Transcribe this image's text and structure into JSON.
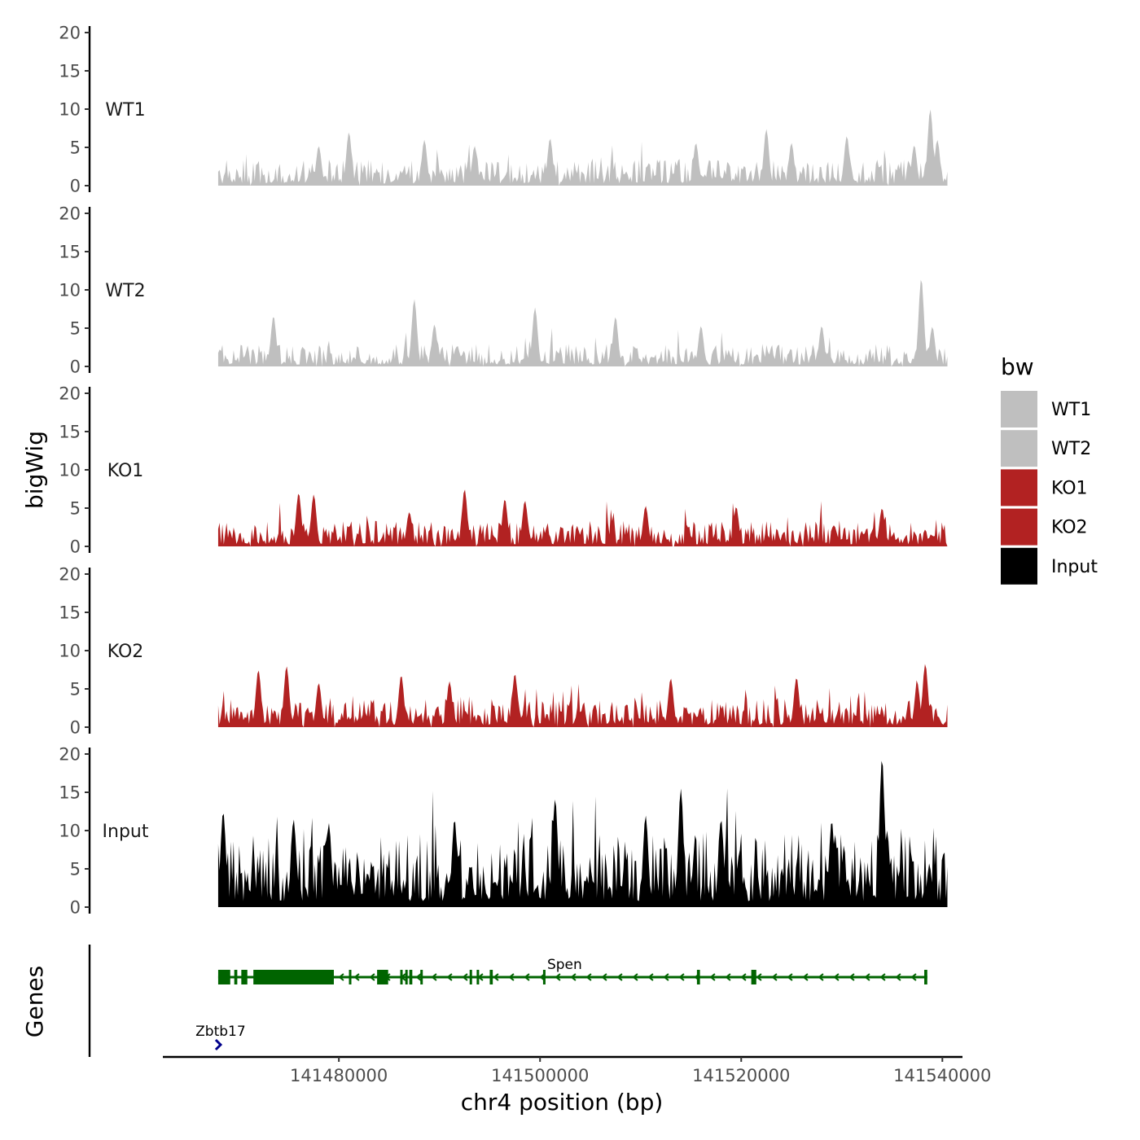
{
  "chart_data": {
    "type": "area",
    "title": "",
    "ylabel": "bigWig",
    "xlabel": "chr4 position (bp)",
    "xlim": [
      141462500,
      141542000
    ],
    "data_xrange": [
      141468000,
      141540500
    ],
    "ylim": [
      0,
      20
    ],
    "yticks": [
      0,
      5,
      10,
      15,
      20
    ],
    "xticks": [
      141480000,
      141500000,
      141520000,
      141540000
    ],
    "grid": false,
    "legend": {
      "title": "bw",
      "position": "right",
      "entries": [
        {
          "label": "WT1",
          "color": "#bfbfbf"
        },
        {
          "label": "WT2",
          "color": "#bfbfbf"
        },
        {
          "label": "KO1",
          "color": "#b22222"
        },
        {
          "label": "KO2",
          "color": "#b22222"
        },
        {
          "label": "Input",
          "color": "#000000"
        }
      ]
    },
    "series": [
      {
        "name": "WT1",
        "color": "#bfbfbf",
        "mean": 1.9,
        "peaks": [
          {
            "x": 141481000,
            "y": 7.0
          },
          {
            "x": 141478000,
            "y": 5.2
          },
          {
            "x": 141488500,
            "y": 6.0
          },
          {
            "x": 141493500,
            "y": 5.2
          },
          {
            "x": 141501000,
            "y": 6.2
          },
          {
            "x": 141515500,
            "y": 5.6
          },
          {
            "x": 141522500,
            "y": 7.4
          },
          {
            "x": 141525000,
            "y": 5.6
          },
          {
            "x": 141530500,
            "y": 6.5
          },
          {
            "x": 141537200,
            "y": 5.3
          },
          {
            "x": 141538800,
            "y": 10.0
          },
          {
            "x": 141539500,
            "y": 6.0
          }
        ]
      },
      {
        "name": "WT2",
        "color": "#bfbfbf",
        "mean": 1.6,
        "peaks": [
          {
            "x": 141473500,
            "y": 6.6
          },
          {
            "x": 141487500,
            "y": 8.8
          },
          {
            "x": 141489500,
            "y": 5.5
          },
          {
            "x": 141499500,
            "y": 7.7
          },
          {
            "x": 141507500,
            "y": 6.5
          },
          {
            "x": 141516000,
            "y": 5.3
          },
          {
            "x": 141528000,
            "y": 5.3
          },
          {
            "x": 141537900,
            "y": 11.5
          },
          {
            "x": 141539000,
            "y": 5.2
          }
        ]
      },
      {
        "name": "KO1",
        "color": "#b22222",
        "mean": 1.8,
        "peaks": [
          {
            "x": 141476000,
            "y": 7.0
          },
          {
            "x": 141477500,
            "y": 6.8
          },
          {
            "x": 141487000,
            "y": 4.5
          },
          {
            "x": 141492500,
            "y": 7.5
          },
          {
            "x": 141496500,
            "y": 6.2
          },
          {
            "x": 141498500,
            "y": 6.0
          },
          {
            "x": 141510500,
            "y": 5.3
          },
          {
            "x": 141519500,
            "y": 5.2
          },
          {
            "x": 141534000,
            "y": 5.0
          }
        ]
      },
      {
        "name": "KO2",
        "color": "#b22222",
        "mean": 2.0,
        "peaks": [
          {
            "x": 141472000,
            "y": 7.5
          },
          {
            "x": 141474800,
            "y": 8.0
          },
          {
            "x": 141478000,
            "y": 5.8
          },
          {
            "x": 141486200,
            "y": 6.8
          },
          {
            "x": 141491000,
            "y": 6.0
          },
          {
            "x": 141497500,
            "y": 7.0
          },
          {
            "x": 141513000,
            "y": 6.4
          },
          {
            "x": 141525500,
            "y": 6.5
          },
          {
            "x": 141537500,
            "y": 5.8
          },
          {
            "x": 141538300,
            "y": 8.3
          }
        ]
      },
      {
        "name": "Input",
        "color": "#000000",
        "mean": 5.2,
        "peaks": [
          {
            "x": 141468500,
            "y": 12.5
          },
          {
            "x": 141475500,
            "y": 11.5
          },
          {
            "x": 141479000,
            "y": 11.0
          },
          {
            "x": 141491500,
            "y": 11.5
          },
          {
            "x": 141501500,
            "y": 14.2
          },
          {
            "x": 141510500,
            "y": 12.0
          },
          {
            "x": 141514000,
            "y": 15.5
          },
          {
            "x": 141518000,
            "y": 11.5
          },
          {
            "x": 141529000,
            "y": 11.3
          },
          {
            "x": 141534000,
            "y": 19.5
          },
          {
            "x": 141534500,
            "y": 10.0
          }
        ]
      }
    ],
    "genes": [
      {
        "name": "Spen",
        "strand": "-",
        "start": 141468000,
        "end": 141538500,
        "color": "#006400",
        "exons": [
          [
            141468000,
            141469200
          ],
          [
            141469600,
            141469900
          ],
          [
            141470300,
            141470900
          ],
          [
            141471500,
            141479500
          ],
          [
            141481000,
            141481100
          ],
          [
            141483800,
            141484900
          ],
          [
            141486100,
            141486300
          ],
          [
            141486600,
            141486800
          ],
          [
            141487000,
            141487300
          ],
          [
            141488100,
            141488300
          ],
          [
            141493000,
            141493200
          ],
          [
            141493700,
            141493900
          ],
          [
            141495000,
            141495300
          ],
          [
            141500300,
            141500400
          ],
          [
            141515600,
            141515900
          ],
          [
            141521000,
            141521500
          ],
          [
            141538200,
            141538500
          ]
        ]
      },
      {
        "name": "Zbtb17",
        "strand": "+",
        "start": 141468000,
        "end": 141468400,
        "color": "#00008b",
        "exons": []
      }
    ],
    "gene_track_label": "Genes"
  }
}
